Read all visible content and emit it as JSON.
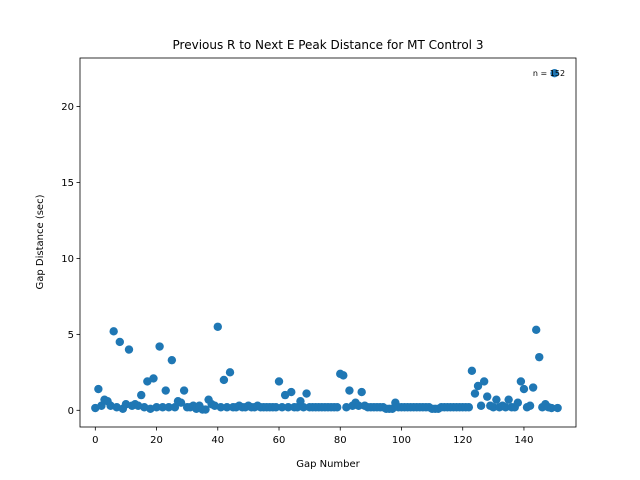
{
  "chart_data": {
    "type": "scatter",
    "title": "Previous R to Next E Peak Distance for MT Control 3",
    "xlabel": "Gap Number",
    "ylabel": "Gap Distance (sec)",
    "xlim": [
      -5,
      157
    ],
    "ylim": [
      -1.1,
      23.2
    ],
    "x_ticks": [
      0,
      20,
      40,
      60,
      80,
      100,
      120,
      140
    ],
    "y_ticks": [
      0,
      5,
      10,
      15,
      20
    ],
    "grid": false,
    "legend": "none",
    "annotation": "n = 152",
    "marker_color": "#1f77b4",
    "series": [
      {
        "x": [
          0,
          1,
          2,
          3,
          4,
          5,
          6,
          7,
          8,
          9,
          10,
          11,
          12,
          13,
          14,
          15,
          16,
          17,
          18,
          19,
          20,
          21,
          22,
          23,
          24,
          25,
          26,
          27,
          28,
          29,
          30,
          31,
          32,
          33,
          34,
          35,
          36,
          37,
          38,
          39,
          40,
          41,
          42,
          43,
          44,
          45,
          46,
          47,
          48,
          49,
          50,
          51,
          52,
          53,
          54,
          55,
          56,
          57,
          58,
          59,
          60,
          61,
          62,
          63,
          64,
          65,
          66,
          67,
          68,
          69,
          70,
          71,
          72,
          73,
          74,
          75,
          76,
          77,
          78,
          79,
          80,
          81,
          82,
          83,
          84,
          85,
          86,
          87,
          88,
          89,
          90,
          91,
          92,
          93,
          94,
          95,
          96,
          97,
          98,
          99,
          100,
          101,
          102,
          103,
          104,
          105,
          106,
          107,
          108,
          109,
          110,
          111,
          112,
          113,
          114,
          115,
          116,
          117,
          118,
          119,
          120,
          121,
          122,
          123,
          124,
          125,
          126,
          127,
          128,
          129,
          130,
          131,
          132,
          133,
          134,
          135,
          136,
          137,
          138,
          139,
          140,
          141,
          142,
          143,
          144,
          145,
          146,
          147,
          148,
          149,
          150,
          151
        ],
        "y": [
          0.15,
          1.4,
          0.3,
          0.7,
          0.6,
          0.3,
          5.2,
          0.2,
          4.5,
          0.1,
          0.4,
          4.0,
          0.3,
          0.4,
          0.3,
          1.0,
          0.2,
          1.9,
          0.1,
          2.1,
          0.2,
          4.2,
          0.2,
          1.3,
          0.2,
          3.3,
          0.2,
          0.6,
          0.5,
          1.3,
          0.2,
          0.2,
          0.3,
          0.1,
          0.3,
          0.05,
          0.05,
          0.7,
          0.4,
          0.3,
          5.5,
          0.2,
          2.0,
          0.2,
          2.5,
          0.2,
          0.2,
          0.3,
          0.2,
          0.2,
          0.3,
          0.2,
          0.2,
          0.3,
          0.2,
          0.2,
          0.2,
          0.2,
          0.2,
          0.2,
          1.9,
          0.2,
          1.0,
          0.2,
          1.2,
          0.2,
          0.2,
          0.6,
          0.2,
          1.1,
          0.2,
          0.2,
          0.2,
          0.2,
          0.2,
          0.2,
          0.2,
          0.2,
          0.2,
          0.2,
          2.4,
          2.3,
          0.2,
          1.3,
          0.3,
          0.5,
          0.3,
          1.2,
          0.3,
          0.2,
          0.2,
          0.2,
          0.2,
          0.2,
          0.2,
          0.1,
          0.1,
          0.1,
          0.5,
          0.2,
          0.2,
          0.2,
          0.2,
          0.2,
          0.2,
          0.2,
          0.2,
          0.2,
          0.2,
          0.2,
          0.1,
          0.1,
          0.1,
          0.2,
          0.2,
          0.2,
          0.2,
          0.2,
          0.2,
          0.2,
          0.2,
          0.2,
          0.2,
          2.6,
          1.1,
          1.6,
          0.3,
          1.9,
          0.9,
          0.3,
          0.2,
          0.7,
          0.2,
          0.3,
          0.2,
          0.7,
          0.2,
          0.2,
          0.5,
          1.9,
          1.4,
          0.2,
          0.3,
          1.5,
          5.3,
          3.5,
          0.2,
          0.4,
          0.2,
          0.15,
          22.2,
          0.15
        ]
      }
    ]
  }
}
